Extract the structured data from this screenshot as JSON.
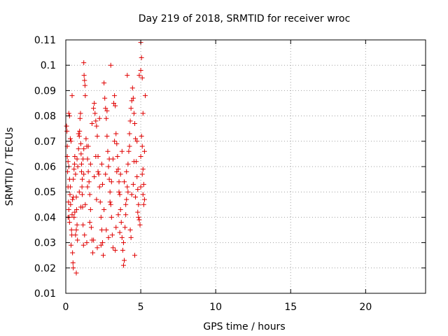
{
  "chart_data": {
    "type": "scatter",
    "title": "Day 219 of 2018, SRMTID for receiver wroc",
    "xlabel": "GPS time / hours",
    "ylabel": "SRMTID / TECUs",
    "xlim": [
      0,
      24
    ],
    "ylim": [
      0.01,
      0.11
    ],
    "xticks": [
      0,
      5,
      10,
      15,
      20
    ],
    "xtick_labels": [
      "0",
      "5",
      "10",
      "15",
      "20"
    ],
    "yticks": [
      0.01,
      0.02,
      0.03,
      0.04,
      0.05,
      0.06,
      0.07,
      0.08,
      0.09,
      0.1,
      0.11
    ],
    "ytick_labels": [
      "0.01",
      "0.02",
      "0.03",
      "0.04",
      "0.05",
      "0.06",
      "0.07",
      "0.08",
      "0.09",
      "0.1",
      "0.11"
    ],
    "grid": true,
    "marker": "+",
    "color": "#e00000",
    "series": [
      {
        "name": "SRMTID",
        "points": [
          [
            0.05,
            0.076
          ],
          [
            0.08,
            0.074
          ],
          [
            0.1,
            0.064
          ],
          [
            0.12,
            0.058
          ],
          [
            0.15,
            0.052
          ],
          [
            0.18,
            0.046
          ],
          [
            0.2,
            0.043
          ],
          [
            0.22,
            0.04
          ],
          [
            0.25,
            0.038
          ],
          [
            0.1,
            0.068
          ],
          [
            0.15,
            0.062
          ],
          [
            0.2,
            0.081
          ],
          [
            0.25,
            0.08
          ],
          [
            0.3,
            0.071
          ],
          [
            0.28,
            0.049
          ],
          [
            0.32,
            0.045
          ],
          [
            0.35,
            0.029
          ],
          [
            0.38,
            0.035
          ],
          [
            0.4,
            0.033
          ],
          [
            0.42,
            0.041
          ],
          [
            0.45,
            0.026
          ],
          [
            0.48,
            0.022
          ],
          [
            0.5,
            0.02
          ],
          [
            0.45,
            0.047
          ],
          [
            0.5,
            0.055
          ],
          [
            0.55,
            0.059
          ],
          [
            0.58,
            0.061
          ],
          [
            0.6,
            0.064
          ],
          [
            0.42,
            0.088
          ],
          [
            0.65,
            0.057
          ],
          [
            0.7,
            0.048
          ],
          [
            0.72,
            0.043
          ],
          [
            0.75,
            0.037
          ],
          [
            0.78,
            0.031
          ],
          [
            0.7,
            0.018
          ],
          [
            0.8,
            0.06
          ],
          [
            0.85,
            0.067
          ],
          [
            0.9,
            0.072
          ],
          [
            0.92,
            0.074
          ],
          [
            0.95,
            0.079
          ],
          [
            0.98,
            0.081
          ],
          [
            1.0,
            0.069
          ],
          [
            1.02,
            0.065
          ],
          [
            1.05,
            0.058
          ],
          [
            1.08,
            0.052
          ],
          [
            1.1,
            0.049
          ],
          [
            1.12,
            0.044
          ],
          [
            1.15,
            0.037
          ],
          [
            1.18,
            0.029
          ],
          [
            1.2,
            0.101
          ],
          [
            1.22,
            0.096
          ],
          [
            1.25,
            0.094
          ],
          [
            1.28,
            0.092
          ],
          [
            1.3,
            0.088
          ],
          [
            1.1,
            0.055
          ],
          [
            1.15,
            0.063
          ],
          [
            1.2,
            0.057
          ],
          [
            1.35,
            0.071
          ],
          [
            1.4,
            0.068
          ],
          [
            1.45,
            0.063
          ],
          [
            1.5,
            0.058
          ],
          [
            1.55,
            0.054
          ],
          [
            1.6,
            0.049
          ],
          [
            1.65,
            0.043
          ],
          [
            1.7,
            0.036
          ],
          [
            1.75,
            0.031
          ],
          [
            1.8,
            0.026
          ],
          [
            1.85,
            0.083
          ],
          [
            1.9,
            0.085
          ],
          [
            1.95,
            0.081
          ],
          [
            2.0,
            0.078
          ],
          [
            2.05,
            0.076
          ],
          [
            2.1,
            0.072
          ],
          [
            2.15,
            0.064
          ],
          [
            2.2,
            0.057
          ],
          [
            2.25,
            0.052
          ],
          [
            2.3,
            0.046
          ],
          [
            2.35,
            0.04
          ],
          [
            2.4,
            0.035
          ],
          [
            2.45,
            0.03
          ],
          [
            2.5,
            0.025
          ],
          [
            2.55,
            0.093
          ],
          [
            2.6,
            0.087
          ],
          [
            2.65,
            0.083
          ],
          [
            2.7,
            0.079
          ],
          [
            2.75,
            0.072
          ],
          [
            2.8,
            0.066
          ],
          [
            2.85,
            0.06
          ],
          [
            2.9,
            0.055
          ],
          [
            2.95,
            0.05
          ],
          [
            3.0,
            0.045
          ],
          [
            3.05,
            0.04
          ],
          [
            3.1,
            0.033
          ],
          [
            3.15,
            0.028
          ],
          [
            3.0,
            0.1
          ],
          [
            3.2,
            0.085
          ],
          [
            3.25,
            0.088
          ],
          [
            3.3,
            0.084
          ],
          [
            3.35,
            0.073
          ],
          [
            3.4,
            0.069
          ],
          [
            3.45,
            0.064
          ],
          [
            3.5,
            0.059
          ],
          [
            3.55,
            0.054
          ],
          [
            3.6,
            0.049
          ],
          [
            3.65,
            0.043
          ],
          [
            3.7,
            0.038
          ],
          [
            3.75,
            0.032
          ],
          [
            3.8,
            0.027
          ],
          [
            3.85,
            0.021
          ],
          [
            3.9,
            0.023
          ],
          [
            3.95,
            0.036
          ],
          [
            4.0,
            0.041
          ],
          [
            4.05,
            0.047
          ],
          [
            4.1,
            0.052
          ],
          [
            4.15,
            0.061
          ],
          [
            4.2,
            0.066
          ],
          [
            4.25,
            0.073
          ],
          [
            4.3,
            0.078
          ],
          [
            4.35,
            0.083
          ],
          [
            4.4,
            0.086
          ],
          [
            4.1,
            0.096
          ],
          [
            4.45,
            0.091
          ],
          [
            4.5,
            0.087
          ],
          [
            4.55,
            0.081
          ],
          [
            4.6,
            0.077
          ],
          [
            4.65,
            0.071
          ],
          [
            4.7,
            0.062
          ],
          [
            4.75,
            0.056
          ],
          [
            4.8,
            0.051
          ],
          [
            4.85,
            0.045
          ],
          [
            4.9,
            0.039
          ],
          [
            4.95,
            0.037
          ],
          [
            5.0,
            0.064
          ],
          [
            5.05,
            0.072
          ],
          [
            5.1,
            0.068
          ],
          [
            5.15,
            0.059
          ],
          [
            5.2,
            0.053
          ],
          [
            5.25,
            0.047
          ],
          [
            5.0,
            0.109
          ],
          [
            5.05,
            0.103
          ],
          [
            5.0,
            0.098
          ],
          [
            4.9,
            0.096
          ],
          [
            5.1,
            0.095
          ],
          [
            5.15,
            0.081
          ],
          [
            5.3,
            0.088
          ],
          [
            4.6,
            0.025
          ],
          [
            3.3,
            0.027
          ],
          [
            2.1,
            0.028
          ],
          [
            1.4,
            0.03
          ],
          [
            0.65,
            0.033
          ],
          [
            0.55,
            0.04
          ],
          [
            1.6,
            0.038
          ],
          [
            2.7,
            0.035
          ],
          [
            3.6,
            0.034
          ],
          [
            4.3,
            0.035
          ],
          [
            0.3,
            0.052
          ],
          [
            0.9,
            0.05
          ],
          [
            1.3,
            0.045
          ],
          [
            1.9,
            0.056
          ],
          [
            2.4,
            0.061
          ],
          [
            2.9,
            0.063
          ],
          [
            3.4,
            0.058
          ],
          [
            3.9,
            0.054
          ],
          [
            4.4,
            0.049
          ],
          [
            4.8,
            0.042
          ],
          [
            5.2,
            0.045
          ],
          [
            0.2,
            0.06
          ],
          [
            0.6,
            0.042
          ],
          [
            1.05,
            0.061
          ],
          [
            1.5,
            0.068
          ],
          [
            2.0,
            0.064
          ],
          [
            2.45,
            0.053
          ],
          [
            2.95,
            0.046
          ],
          [
            3.5,
            0.041
          ],
          [
            4.05,
            0.058
          ],
          [
            4.55,
            0.062
          ],
          [
            5.1,
            0.057
          ],
          [
            0.35,
            0.07
          ],
          [
            0.85,
            0.073
          ],
          [
            1.75,
            0.077
          ],
          [
            2.25,
            0.079
          ],
          [
            2.75,
            0.082
          ],
          [
            3.25,
            0.07
          ],
          [
            3.75,
            0.066
          ],
          [
            4.25,
            0.068
          ],
          [
            4.75,
            0.07
          ],
          [
            5.25,
            0.066
          ],
          [
            0.15,
            0.04
          ],
          [
            0.7,
            0.035
          ],
          [
            1.25,
            0.033
          ],
          [
            1.85,
            0.031
          ],
          [
            2.35,
            0.029
          ],
          [
            2.85,
            0.032
          ],
          [
            3.35,
            0.036
          ],
          [
            3.85,
            0.03
          ],
          [
            4.35,
            0.032
          ],
          [
            4.85,
            0.04
          ],
          [
            0.5,
            0.048
          ],
          [
            1.0,
            0.044
          ],
          [
            1.45,
            0.052
          ],
          [
            2.05,
            0.047
          ],
          [
            2.55,
            0.043
          ],
          [
            3.05,
            0.054
          ],
          [
            3.55,
            0.05
          ],
          [
            4.0,
            0.045
          ],
          [
            4.5,
            0.053
          ],
          [
            5.0,
            0.052
          ],
          [
            0.25,
            0.055
          ],
          [
            0.75,
            0.063
          ],
          [
            1.2,
            0.067
          ],
          [
            1.65,
            0.061
          ],
          [
            2.15,
            0.058
          ],
          [
            2.65,
            0.057
          ],
          [
            3.15,
            0.063
          ],
          [
            3.65,
            0.057
          ],
          [
            4.15,
            0.05
          ],
          [
            4.65,
            0.048
          ],
          [
            5.15,
            0.049
          ]
        ]
      }
    ]
  }
}
